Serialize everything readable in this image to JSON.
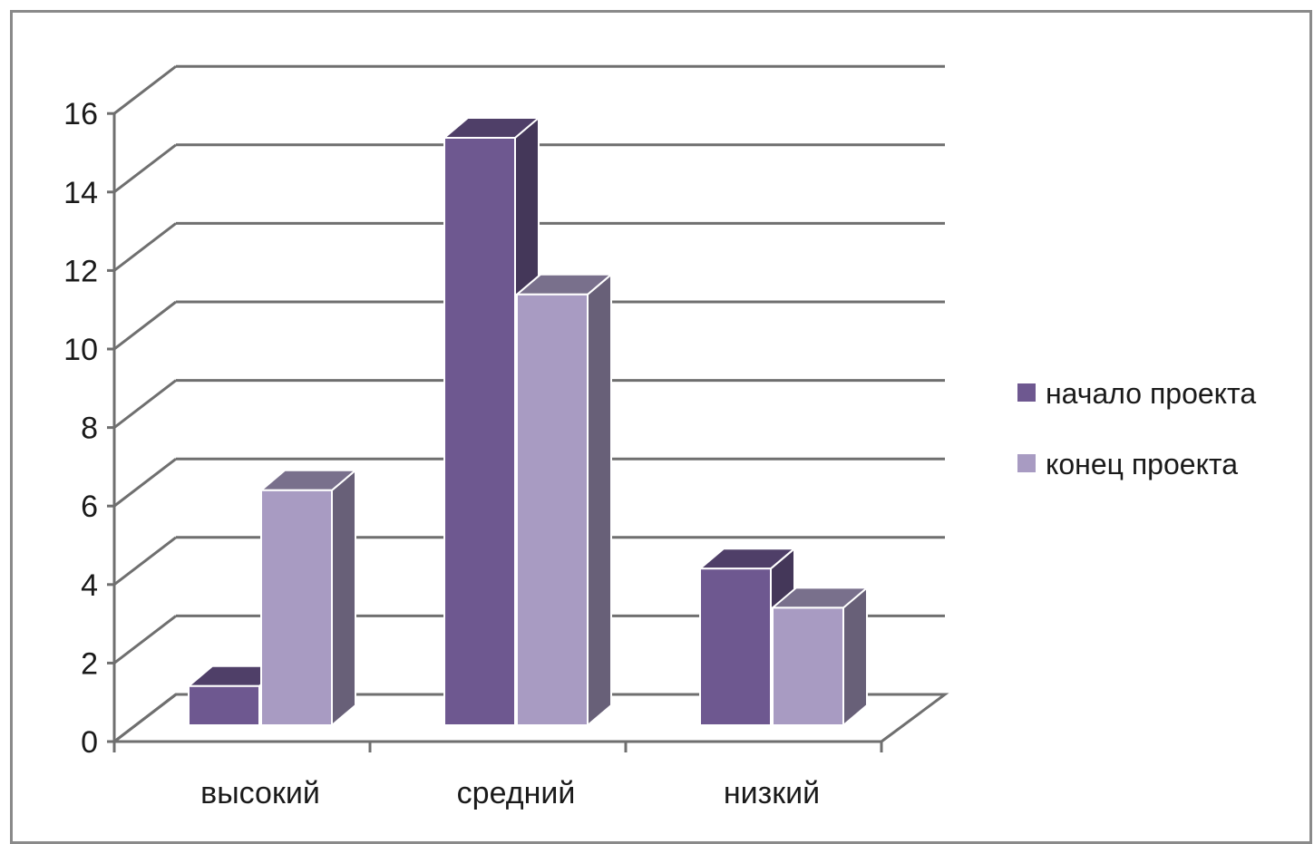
{
  "chart_data": {
    "type": "bar",
    "style": "3d-clustered-column",
    "categories": [
      "высокий",
      "средний",
      "низкий"
    ],
    "series": [
      {
        "name": "начало проекта",
        "values": [
          1,
          15,
          4
        ],
        "color": "#6e5890"
      },
      {
        "name": "конец проекта",
        "values": [
          6,
          11,
          3
        ],
        "color": "#a89bc2"
      }
    ],
    "y_ticks": [
      "0",
      "2",
      "4",
      "6",
      "8",
      "10",
      "12",
      "14",
      "16"
    ],
    "ylim": [
      0,
      16
    ],
    "grid": true,
    "legend_position": "right"
  }
}
